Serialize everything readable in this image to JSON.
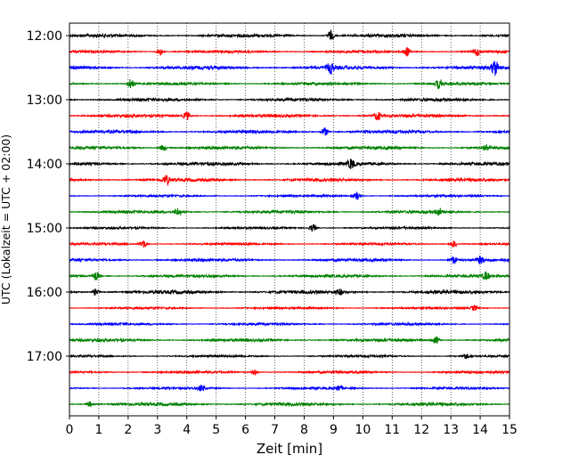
{
  "chart_data": {
    "type": "line",
    "xlabel": "Zeit  [min]",
    "ylabel": "UTC (Lokalzeit = UTC + 02:00)",
    "xlim": [
      0,
      15
    ],
    "x_ticks": [
      "0",
      "1",
      "2",
      "3",
      "4",
      "5",
      "6",
      "7",
      "8",
      "9",
      "10",
      "11",
      "12",
      "13",
      "14",
      "15"
    ],
    "y_ticks": [
      "12:00",
      "13:00",
      "14:00",
      "15:00",
      "16:00",
      "17:00"
    ],
    "grid": "vertical dotted at each minute",
    "traces_per_hour": 4,
    "trace_colors": [
      "#000000",
      "#ff0000",
      "#0000ff",
      "#008000"
    ],
    "trace_start_hour": 12,
    "trace_count": 24,
    "trace_interval_min": 15,
    "events": [
      {
        "trace": 0,
        "x": 8.9,
        "amp": 0.9
      },
      {
        "trace": 1,
        "x": 3.1,
        "amp": 0.7
      },
      {
        "trace": 1,
        "x": 11.5,
        "amp": 0.8
      },
      {
        "trace": 1,
        "x": 13.9,
        "amp": 0.7
      },
      {
        "trace": 2,
        "x": 8.9,
        "amp": 1.0
      },
      {
        "trace": 2,
        "x": 14.5,
        "amp": 1.4
      },
      {
        "trace": 3,
        "x": 2.1,
        "amp": 0.9
      },
      {
        "trace": 3,
        "x": 12.6,
        "amp": 0.9
      },
      {
        "trace": 5,
        "x": 4.0,
        "amp": 0.8
      },
      {
        "trace": 5,
        "x": 10.5,
        "amp": 0.8
      },
      {
        "trace": 6,
        "x": 8.7,
        "amp": 0.8
      },
      {
        "trace": 7,
        "x": 3.2,
        "amp": 0.6
      },
      {
        "trace": 7,
        "x": 14.2,
        "amp": 0.6
      },
      {
        "trace": 8,
        "x": 9.6,
        "amp": 0.8
      },
      {
        "trace": 9,
        "x": 3.3,
        "amp": 0.8
      },
      {
        "trace": 10,
        "x": 9.8,
        "amp": 0.7
      },
      {
        "trace": 11,
        "x": 3.7,
        "amp": 0.7
      },
      {
        "trace": 11,
        "x": 12.6,
        "amp": 0.6
      },
      {
        "trace": 12,
        "x": 8.3,
        "amp": 0.7
      },
      {
        "trace": 13,
        "x": 2.5,
        "amp": 0.8
      },
      {
        "trace": 13,
        "x": 13.1,
        "amp": 0.6
      },
      {
        "trace": 14,
        "x": 13.1,
        "amp": 0.7
      },
      {
        "trace": 14,
        "x": 14.0,
        "amp": 0.6
      },
      {
        "trace": 15,
        "x": 0.9,
        "amp": 0.7
      },
      {
        "trace": 15,
        "x": 14.2,
        "amp": 0.7
      },
      {
        "trace": 16,
        "x": 0.9,
        "amp": 0.6
      },
      {
        "trace": 16,
        "x": 9.2,
        "amp": 0.5
      },
      {
        "trace": 17,
        "x": 13.8,
        "amp": 0.5
      },
      {
        "trace": 19,
        "x": 12.5,
        "amp": 0.7
      },
      {
        "trace": 20,
        "x": 13.5,
        "amp": 0.5
      },
      {
        "trace": 21,
        "x": 6.3,
        "amp": 0.5
      },
      {
        "trace": 22,
        "x": 4.5,
        "amp": 0.6
      },
      {
        "trace": 22,
        "x": 9.2,
        "amp": 0.5
      },
      {
        "trace": 23,
        "x": 0.7,
        "amp": 0.5
      }
    ]
  }
}
